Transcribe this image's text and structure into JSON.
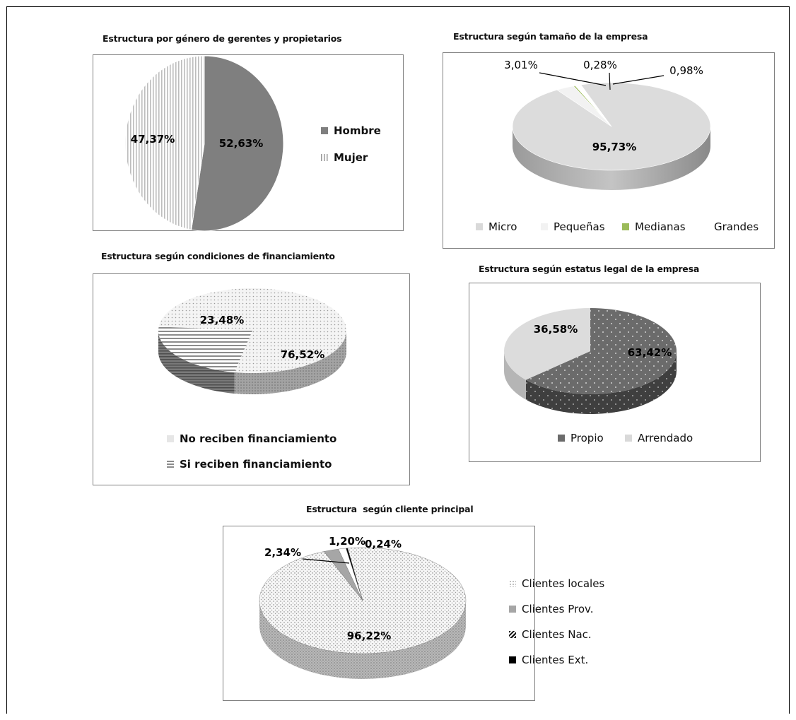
{
  "chart_data": [
    {
      "type": "pie",
      "title": "Estructura por género de gerentes y propietarios",
      "categories": [
        "Hombre",
        "Mujer"
      ],
      "values": [
        52.63,
        47.37
      ],
      "labels": [
        "52,63%",
        "47,37%"
      ],
      "colors": [
        "#7f7f7f",
        "#d9d9d9"
      ],
      "legend": "right"
    },
    {
      "type": "pie",
      "title": "Estructura según tamaño de la empresa",
      "categories": [
        "Micro",
        "Pequeñas",
        "Medianas",
        "Grandes"
      ],
      "values": [
        95.73,
        3.01,
        0.28,
        0.98
      ],
      "labels": [
        "95,73%",
        "3,01%",
        "0,28%",
        "0,98%"
      ],
      "colors": [
        "#d9d9d9",
        "#f2f2f2",
        "#9bbb59",
        "#ffffff"
      ],
      "legend": "bottom"
    },
    {
      "type": "pie",
      "title": "Estructura según condiciones de financiamiento",
      "categories": [
        "No reciben financiamiento",
        "Si reciben financiamiento"
      ],
      "values": [
        76.52,
        23.48
      ],
      "labels": [
        "76,52%",
        "23,48%"
      ],
      "colors": [
        "#e6e6e6",
        "#a6a6a6"
      ],
      "legend": "bottom"
    },
    {
      "type": "pie",
      "title": "Estructura según estatus legal de la empresa",
      "categories": [
        "Propio",
        "Arrendado"
      ],
      "values": [
        63.42,
        36.58
      ],
      "labels": [
        "63,42%",
        "36,58%"
      ],
      "colors": [
        "#6b6b6b",
        "#d9d9d9"
      ],
      "legend": "bottom"
    },
    {
      "type": "pie",
      "title": "Estructura  según cliente principal",
      "categories": [
        "Clientes locales",
        "Clientes Prov.",
        "Clientes Nac.",
        "Clientes Ext."
      ],
      "values": [
        96.22,
        2.34,
        1.2,
        0.24
      ],
      "labels": [
        "96,22%",
        "2,34%",
        "1,20%",
        "0,24%"
      ],
      "colors": [
        "#f0f0f0",
        "#a6a6a6",
        "#ffffff",
        "#000000"
      ],
      "legend": "right"
    }
  ]
}
